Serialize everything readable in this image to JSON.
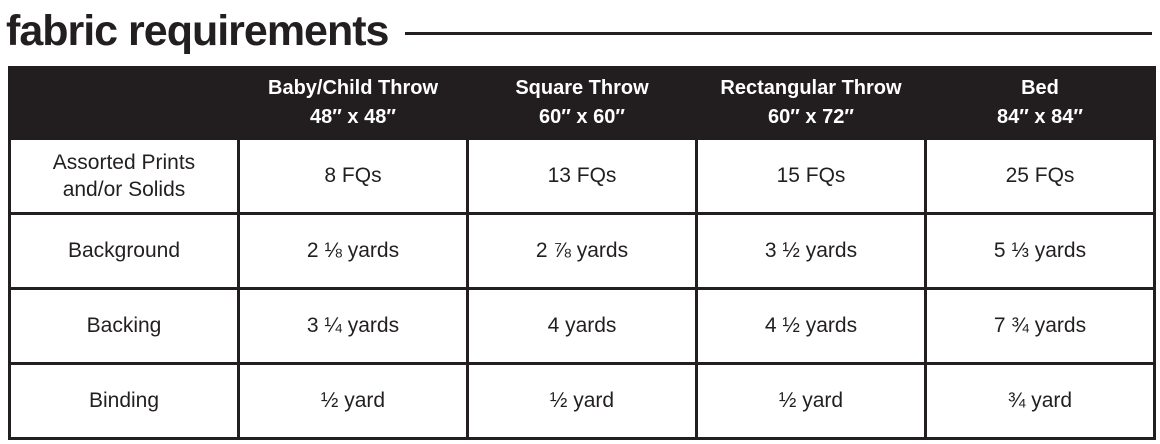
{
  "page": {
    "title": "fabric requirements"
  },
  "table": {
    "columns": [
      {
        "label": "",
        "size": ""
      },
      {
        "label": "Baby/Child Throw",
        "size": "48″ x 48″"
      },
      {
        "label": "Square Throw",
        "size": "60″ x 60″"
      },
      {
        "label": "Rectangular Throw",
        "size": "60″ x 72″"
      },
      {
        "label": "Bed",
        "size": "84″ x 84″"
      }
    ],
    "rows": [
      {
        "label": "Assorted Prints and/or Solids",
        "values": [
          "8 FQs",
          "13 FQs",
          "15 FQs",
          "25 FQs"
        ]
      },
      {
        "label": "Background",
        "values": [
          "2 ⅛ yards",
          "2 ⅞ yards",
          "3 ½ yards",
          "5 ⅓ yards"
        ]
      },
      {
        "label": "Backing",
        "values": [
          "3 ¼ yards",
          "4 yards",
          "4 ½ yards",
          "7 ¾ yards"
        ]
      },
      {
        "label": "Binding",
        "values": [
          "½ yard",
          "½ yard",
          "½ yard",
          "¾ yard"
        ]
      }
    ],
    "colors": {
      "header_bg": "#221e1f",
      "header_text": "#ffffff",
      "body_text": "#231f20",
      "border": "#231f20"
    }
  }
}
